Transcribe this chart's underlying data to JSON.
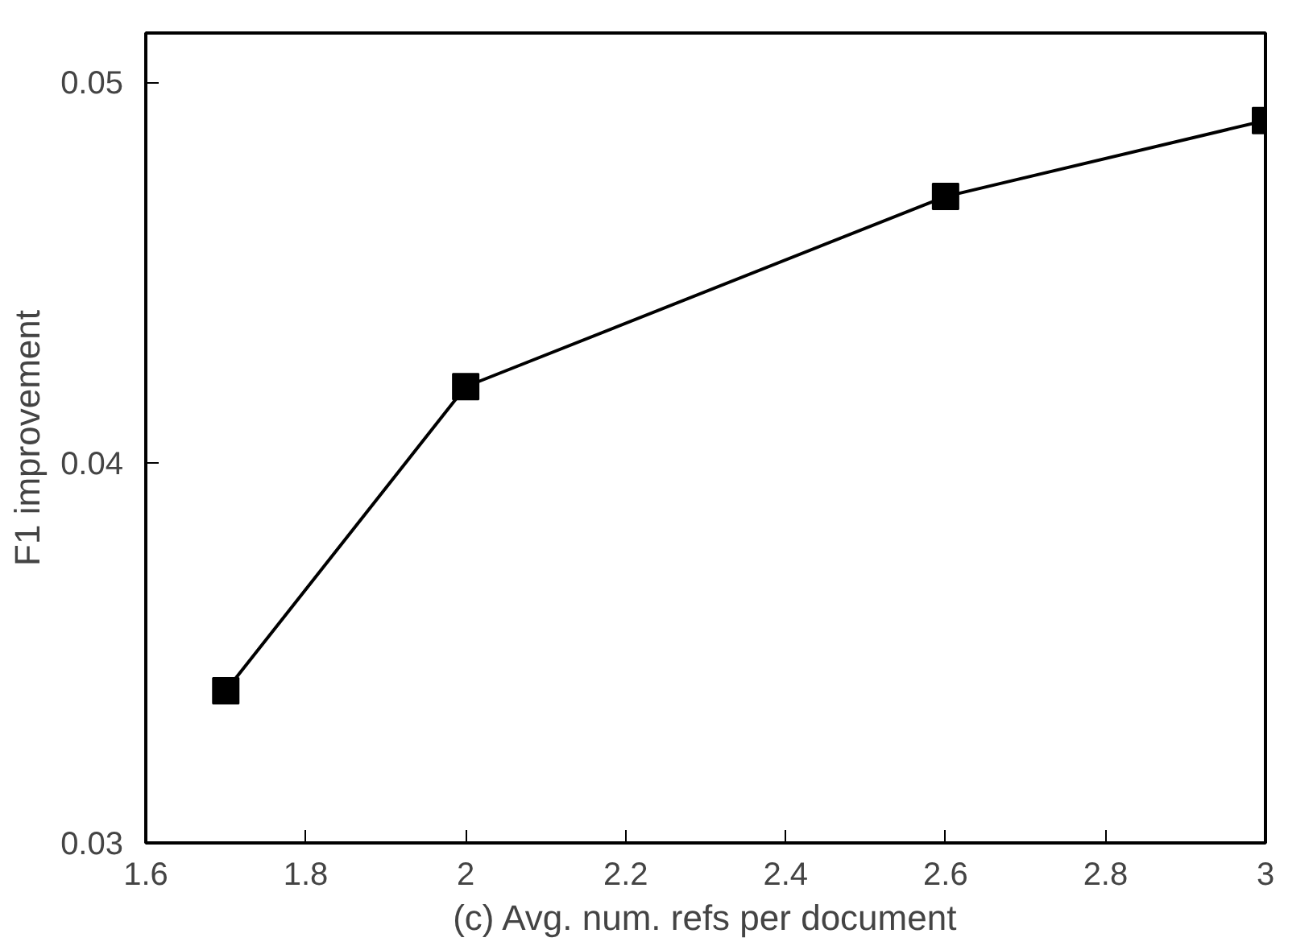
{
  "chart_data": {
    "type": "line",
    "xlabel": "(c) Avg. num. refs per document",
    "ylabel": "F1 improvement",
    "x": [
      1.7,
      2.0,
      2.6,
      3.0
    ],
    "series": [
      {
        "color": "#000000",
        "values": [
          0.034,
          0.042,
          0.047,
          0.049
        ]
      }
    ],
    "xlim": [
      1.6,
      3.0
    ],
    "ylim": [
      0.03,
      0.0513
    ],
    "xticks": [
      1.6,
      1.8,
      2,
      2.2,
      2.4,
      2.6,
      2.8,
      3
    ],
    "yticks": [
      0.03,
      0.04,
      0.05
    ],
    "marker": "square",
    "line_style": "solid",
    "grid": false
  }
}
